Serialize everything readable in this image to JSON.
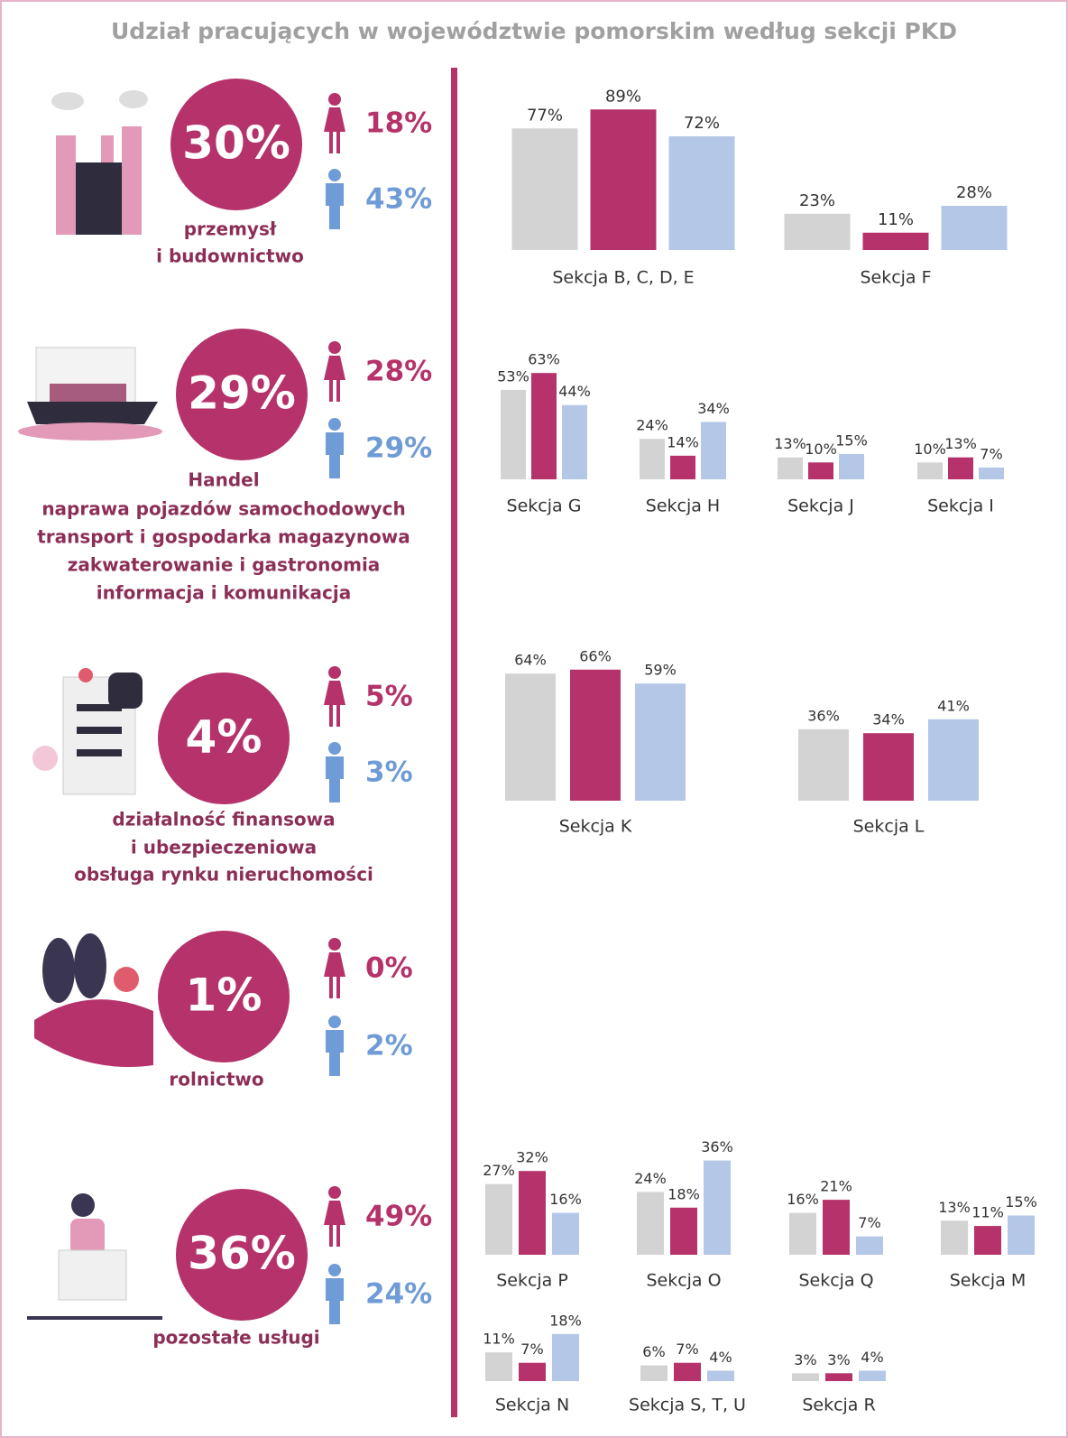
{
  "title": "Udział pracujących w województwie pomorskim według sekcji PKD",
  "sectors": [
    {
      "total": "30%",
      "women": "18%",
      "men": "43%",
      "label": [
        "przemysł",
        "i budownictwo"
      ]
    },
    {
      "total": "29%",
      "women": "28%",
      "men": "29%",
      "label": [
        "Handel",
        "naprawa pojazdów samochodowych",
        "transport i gospodarka magazynowa",
        "zakwaterowanie i gastronomia",
        "informacja i komunikacja"
      ]
    },
    {
      "total": "4%",
      "women": "5%",
      "men": "3%",
      "label": [
        "działalność finansowa",
        "i ubezpieczeniowa",
        "obsługa rynku nieruchomości"
      ]
    },
    {
      "total": "1%",
      "women": "0%",
      "men": "2%",
      "label": [
        "rolnictwo"
      ]
    },
    {
      "total": "36%",
      "women": "49%",
      "men": "24%",
      "label": [
        "pozostałe usługi"
      ]
    }
  ],
  "chart_data": [
    {
      "type": "bar",
      "categories": [
        "Sekcja B, C, D, E",
        "Sekcja F"
      ],
      "ylim": [
        0,
        100
      ],
      "series": [
        {
          "color": "#d3d3d3",
          "values": [
            77,
            23
          ],
          "value_labels": [
            "77%",
            "23%"
          ]
        },
        {
          "color": "#b5336a",
          "values": [
            89,
            11
          ],
          "value_labels": [
            "89%",
            "11%"
          ]
        },
        {
          "color": "#b4c7e7",
          "values": [
            72,
            28
          ],
          "value_labels": [
            "72%",
            "28%"
          ]
        }
      ]
    },
    {
      "type": "bar",
      "categories": [
        "Sekcja G",
        "Sekcja H",
        "Sekcja J",
        "Sekcja I"
      ],
      "ylim": [
        0,
        100
      ],
      "series": [
        {
          "color": "#d3d3d3",
          "values": [
            53,
            24,
            13,
            10
          ],
          "value_labels": [
            "53%",
            "24%",
            "13%",
            "10%"
          ]
        },
        {
          "color": "#b5336a",
          "values": [
            63,
            14,
            10,
            13
          ],
          "value_labels": [
            "63%",
            "14%",
            "10%",
            "13%"
          ]
        },
        {
          "color": "#b4c7e7",
          "values": [
            44,
            34,
            15,
            7
          ],
          "value_labels": [
            "44%",
            "34%",
            "15%",
            "7%"
          ]
        }
      ]
    },
    {
      "type": "bar",
      "categories": [
        "Sekcja K",
        "Sekcja L"
      ],
      "ylim": [
        0,
        100
      ],
      "series": [
        {
          "color": "#d3d3d3",
          "values": [
            64,
            36
          ],
          "value_labels": [
            "64%",
            "36%"
          ]
        },
        {
          "color": "#b5336a",
          "values": [
            66,
            34
          ],
          "value_labels": [
            "66%",
            "34%"
          ]
        },
        {
          "color": "#b4c7e7",
          "values": [
            59,
            41
          ],
          "value_labels": [
            "59%",
            "41%"
          ]
        }
      ]
    },
    {
      "type": "bar",
      "categories": [
        "Sekcja P",
        "Sekcja O",
        "Sekcja Q",
        "Sekcja M"
      ],
      "ylim": [
        0,
        100
      ],
      "series": [
        {
          "color": "#d3d3d3",
          "values": [
            27,
            24,
            16,
            13
          ],
          "value_labels": [
            "27%",
            "24%",
            "16%",
            "13%"
          ]
        },
        {
          "color": "#b5336a",
          "values": [
            32,
            18,
            21,
            11
          ],
          "value_labels": [
            "32%",
            "18%",
            "21%",
            "11%"
          ]
        },
        {
          "color": "#b4c7e7",
          "values": [
            16,
            36,
            7,
            15
          ],
          "value_labels": [
            "16%",
            "36%",
            "7%",
            "15%"
          ]
        }
      ]
    },
    {
      "type": "bar",
      "categories": [
        "Sekcja N",
        "Sekcja S, T, U",
        "Sekcja R"
      ],
      "ylim": [
        0,
        100
      ],
      "series": [
        {
          "color": "#d3d3d3",
          "values": [
            11,
            6,
            3
          ],
          "value_labels": [
            "11%",
            "6%",
            "3%"
          ]
        },
        {
          "color": "#b5336a",
          "values": [
            7,
            7,
            3
          ],
          "value_labels": [
            "7%",
            "7%",
            "3%"
          ]
        },
        {
          "color": "#b4c7e7",
          "values": [
            18,
            4,
            4
          ],
          "value_labels": [
            "18%",
            "4%",
            "4%"
          ]
        }
      ]
    }
  ]
}
